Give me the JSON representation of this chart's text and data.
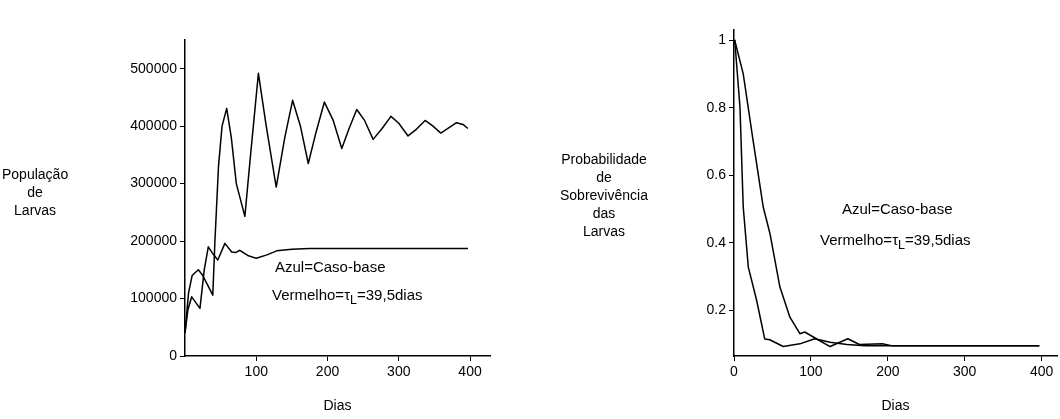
{
  "chart_data": [
    {
      "type": "line",
      "xlabel": "Dias",
      "ylabel": "População de Larvas",
      "xlim": [
        0,
        428
      ],
      "ylim": [
        0,
        550000
      ],
      "xticks": [
        100,
        200,
        300,
        400
      ],
      "yticks": [
        0,
        100000,
        200000,
        300000,
        400000,
        500000
      ],
      "marker": "none",
      "grid": false,
      "annotations": [
        "Azul=Caso-base",
        "Vermelho=τ$_{L}$=39,5dias"
      ],
      "series": [
        {
          "color": "#000000",
          "x": [
            0,
            5,
            10,
            18.7,
            25,
            39,
            42,
            47,
            52,
            58.5,
            65,
            72,
            84,
            92,
            103,
            114,
            128,
            140,
            151,
            162,
            173,
            184,
            195.6,
            208,
            220,
            230,
            241,
            252,
            264,
            276,
            289,
            300,
            313,
            325,
            337,
            348,
            359,
            370,
            381,
            390,
            397
          ],
          "values": [
            40000,
            110000,
            140000,
            150000,
            140000,
            106000,
            200000,
            330000,
            400000,
            431000,
            380000,
            300000,
            243000,
            350000,
            492000,
            400000,
            294000,
            380000,
            445000,
            400000,
            335000,
            390000,
            442000,
            410000,
            361000,
            395000,
            429000,
            410000,
            377000,
            395000,
            417000,
            405000,
            383000,
            395000,
            410000,
            400000,
            388000,
            397000,
            406000,
            403000,
            396000
          ]
        },
        {
          "color": "#000000",
          "x": [
            0,
            4,
            9.4,
            21,
            27,
            32.7,
            38,
            46,
            56,
            65.5,
            71,
            77,
            88,
            100,
            115,
            128.7,
            150,
            175,
            250,
            397
          ],
          "values": [
            40000,
            80000,
            103000,
            83000,
            150000,
            190000,
            180000,
            167000,
            196000,
            181000,
            180000,
            184000,
            175000,
            170000,
            176000,
            183000,
            186000,
            187000,
            187000,
            187000
          ]
        }
      ]
    },
    {
      "type": "line",
      "xlabel": "Dias",
      "ylabel": "Probabilidade de Sobrevivência das Larvas",
      "xlim": [
        0,
        420
      ],
      "ylim": [
        0.065,
        1.03
      ],
      "xticks": [
        0,
        100,
        200,
        300,
        400
      ],
      "yticks": [
        0.2,
        0.4,
        0.6,
        0.8,
        1
      ],
      "marker": "none",
      "grid": false,
      "annotations": [
        "Azul=Caso-base",
        "Vermelho=τ$_{L}$=39,5dias"
      ],
      "series": [
        {
          "color": "#000000",
          "x": [
            0,
            1.3,
            7.8,
            12,
            18.6,
            29.4,
            40,
            46.5,
            64,
            85.7,
            105,
            125,
            147,
            170,
            250,
            397
          ],
          "values": [
            1,
            0.99,
            0.8,
            0.506,
            0.328,
            0.23,
            0.115,
            0.113,
            0.093,
            0.101,
            0.116,
            0.106,
            0.099,
            0.095,
            0.095,
            0.095
          ]
        },
        {
          "color": "#000000",
          "x": [
            0,
            2,
            12,
            25,
            38,
            46.8,
            59.7,
            72.7,
            85.7,
            92,
            107,
            125,
            148,
            163,
            193,
            206,
            300,
            397
          ],
          "values": [
            1,
            0.99,
            0.9,
            0.7,
            0.506,
            0.427,
            0.269,
            0.18,
            0.131,
            0.136,
            0.116,
            0.093,
            0.116,
            0.099,
            0.101,
            0.095,
            0.095,
            0.095
          ]
        }
      ]
    }
  ]
}
